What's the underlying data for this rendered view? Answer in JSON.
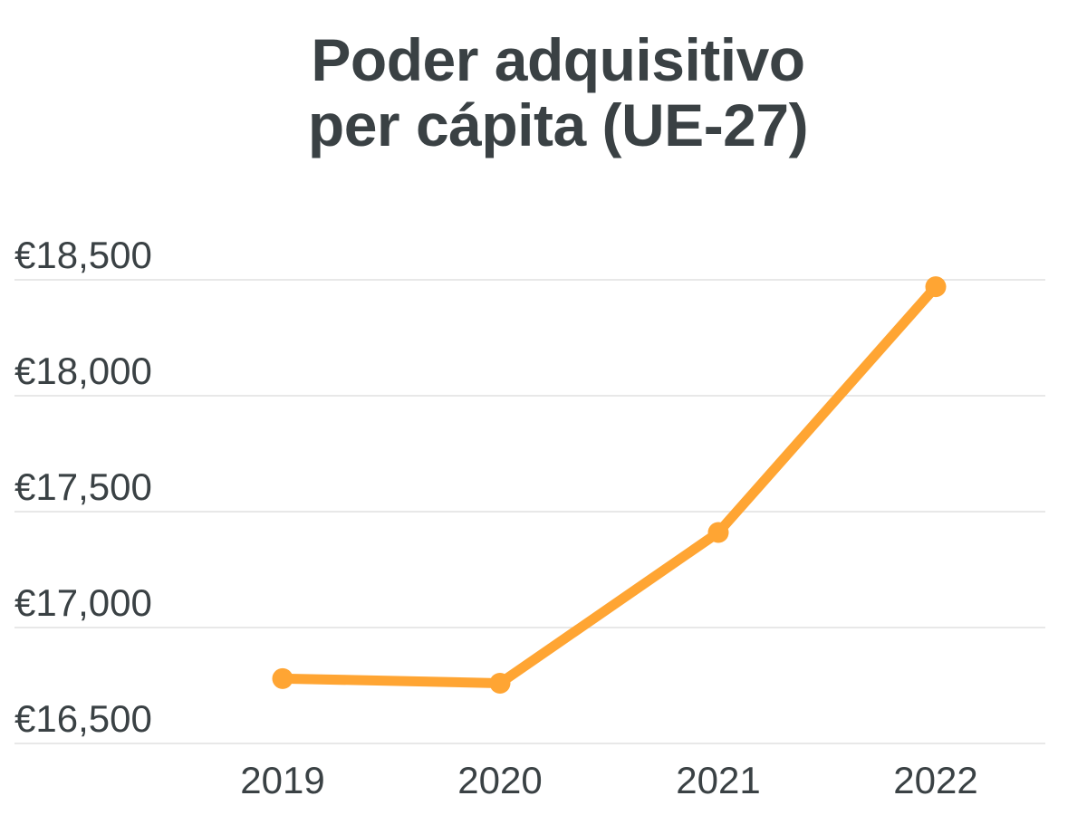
{
  "chart_data": {
    "type": "line",
    "title_lines": [
      "Poder adquisitivo",
      "per cápita (UE-27)"
    ],
    "categories": [
      "2019",
      "2020",
      "2021",
      "2022"
    ],
    "series": [
      {
        "values": [
          16780,
          16760,
          17410,
          18470
        ],
        "color": "#ffa533"
      }
    ],
    "yticks": [
      16500,
      17000,
      17500,
      18000,
      18500
    ],
    "ytick_labels": [
      "€16,500",
      "€17,000",
      "€17,500",
      "€18,000",
      "€18,500"
    ],
    "ylim": [
      16500,
      18500
    ],
    "grid": true,
    "legend": "none"
  }
}
